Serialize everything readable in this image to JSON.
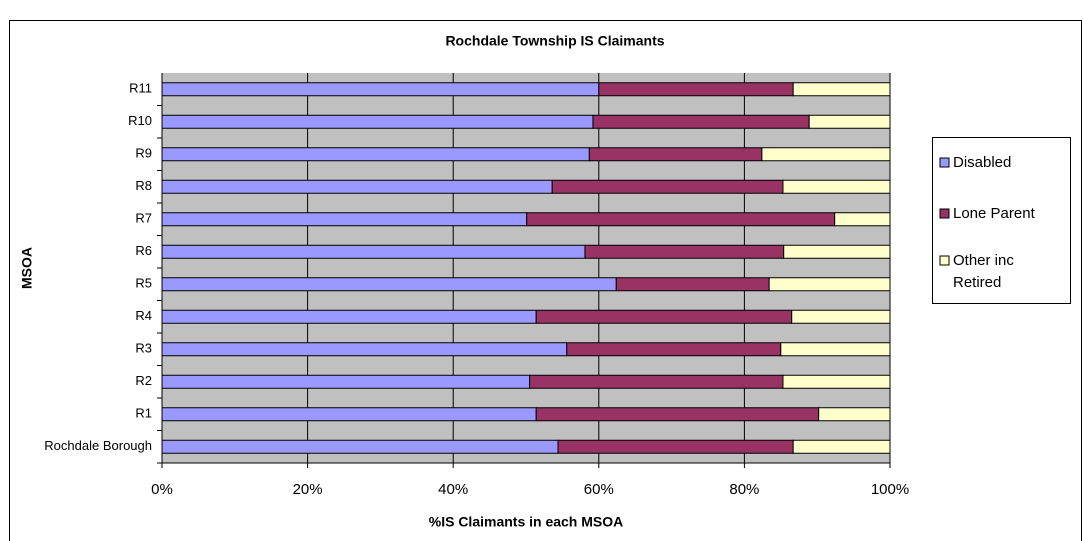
{
  "chart_data": {
    "type": "stacked_barh",
    "title": "Rochdale Township IS Claimants",
    "x_label": "%IS Claimants in each MSOA",
    "y_label": "MSOA",
    "categories": [
      "Rochdale Borough",
      "R1",
      "R2",
      "R3",
      "R4",
      "R5",
      "R6",
      "R7",
      "R8",
      "R9",
      "R10",
      "R11"
    ],
    "series": [
      {
        "name": "Disabled",
        "color": "#9999ff",
        "values": [
          54.4,
          51.4,
          50.5,
          55.6,
          51.4,
          62.4,
          58.1,
          50.1,
          53.6,
          58.7,
          59.2,
          60.0
        ]
      },
      {
        "name": "Lone Parent",
        "color": "#993366",
        "values": [
          32.3,
          38.8,
          34.8,
          29.4,
          35.1,
          21.0,
          27.3,
          42.3,
          31.7,
          23.7,
          29.7,
          26.7
        ]
      },
      {
        "name": "Other inc Retired",
        "color": "#ffffcc",
        "values": [
          13.3,
          9.8,
          14.7,
          15.0,
          13.5,
          16.6,
          14.6,
          7.6,
          14.7,
          17.6,
          11.1,
          13.3
        ]
      }
    ],
    "xlim": [
      0,
      100
    ],
    "xticks": [
      {
        "value": 0,
        "label": "0%"
      },
      {
        "value": 20,
        "label": "20%"
      },
      {
        "value": 40,
        "label": "40%"
      },
      {
        "value": 60,
        "label": "60%"
      },
      {
        "value": 80,
        "label": "80%"
      },
      {
        "value": 100,
        "label": "100%"
      }
    ],
    "grid": true,
    "legend": "right",
    "plot_background": "#c0c0c0"
  }
}
